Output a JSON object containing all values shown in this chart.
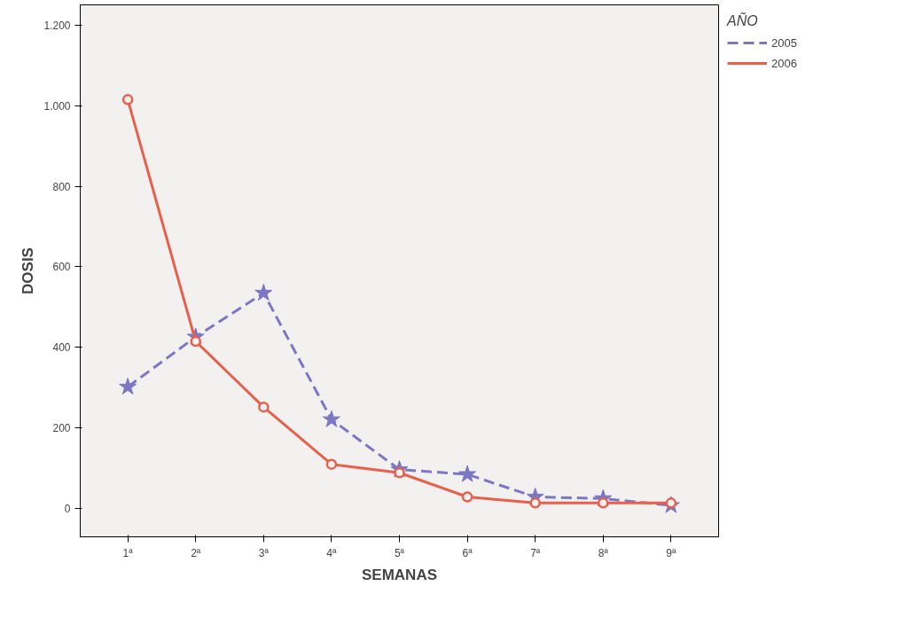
{
  "chart_data": {
    "type": "line",
    "xlabel": "SEMANAS",
    "ylabel": "DOSIS",
    "legend_title": "AÑO",
    "legend": "top right",
    "categories": [
      "1ª",
      "2ª",
      "3ª",
      "4ª",
      "5ª",
      "6ª",
      "7ª",
      "8ª",
      "9ª"
    ],
    "ylim": [
      -70,
      1250
    ],
    "yticks": [
      0,
      200,
      400,
      600,
      800,
      {
        "value": 1000,
        "label": "1.000"
      },
      {
        "value": 1200,
        "label": "1.200"
      }
    ],
    "grid": false,
    "series": [
      {
        "name": "2005",
        "color": "#7b77c4",
        "marker": "star",
        "line_style": "dashed",
        "values": [
          302,
          426,
          535,
          221,
          97,
          85,
          29,
          25,
          8
        ]
      },
      {
        "name": "2006",
        "color": "#e8604c",
        "marker": "circle",
        "line_style": "solid",
        "values": [
          1015,
          415,
          252,
          110,
          89,
          29,
          14,
          14,
          14
        ]
      }
    ]
  }
}
